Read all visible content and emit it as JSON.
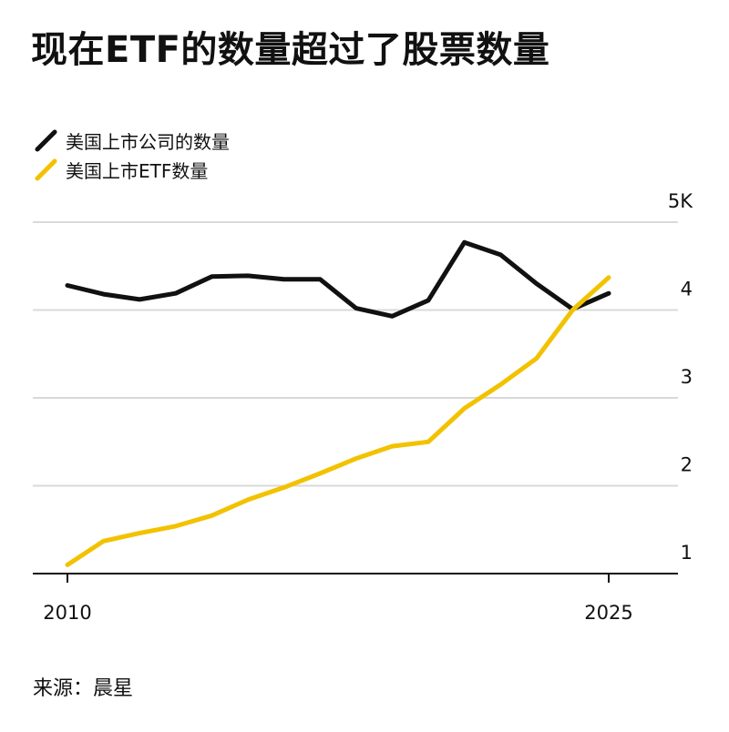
{
  "title": "现在ETF的数量超过了股票数量",
  "source": "来源：晨星",
  "legend": [
    {
      "label": "美国上市公司的数量",
      "color": "#111111"
    },
    {
      "label": "美国上市ETF数量",
      "color": "#f2c200"
    }
  ],
  "chart_data": {
    "type": "line",
    "x": [
      2010,
      2011,
      2012,
      2013,
      2014,
      2015,
      2016,
      2017,
      2018,
      2019,
      2020,
      2021,
      2022,
      2023,
      2024,
      2025
    ],
    "x_tick_labels": [
      "2010",
      "2025"
    ],
    "y_tick_labels": [
      "1",
      "2",
      "3",
      "4",
      "5K"
    ],
    "ylim": [
      0.9,
      5.05
    ],
    "grid": true,
    "legend_position": "top-left",
    "series": [
      {
        "name": "美国上市公司的数量",
        "color": "#111111",
        "values": [
          4.28,
          4.18,
          4.12,
          4.19,
          4.38,
          4.39,
          4.35,
          4.35,
          4.02,
          3.93,
          4.11,
          4.77,
          4.63,
          4.3,
          4.01,
          4.19
        ]
      },
      {
        "name": "美国上市ETF数量",
        "color": "#f2c200",
        "values": [
          1.1,
          1.37,
          1.46,
          1.54,
          1.66,
          1.84,
          1.98,
          2.14,
          2.31,
          2.45,
          2.5,
          2.88,
          3.15,
          3.45,
          4.0,
          4.37
        ]
      }
    ]
  }
}
